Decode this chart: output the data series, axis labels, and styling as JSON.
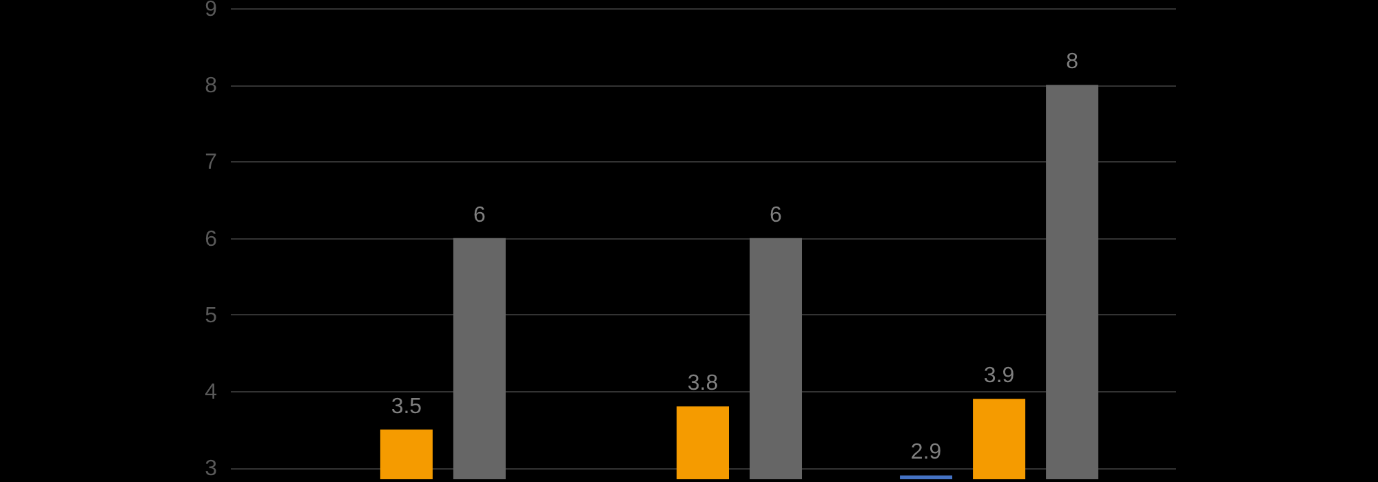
{
  "chart_data": {
    "type": "bar",
    "categories": [
      null,
      null,
      null
    ],
    "series": [
      {
        "color": "#4472c4",
        "values": [
          null,
          null,
          2.9
        ]
      },
      {
        "color": "#f59b00",
        "values": [
          3.5,
          3.8,
          3.9
        ]
      },
      {
        "color": "#666666",
        "values": [
          6,
          6,
          8
        ]
      }
    ],
    "ylim": [
      2.85,
      9
    ],
    "yticks": [
      3,
      4,
      5,
      6,
      7,
      8,
      9
    ],
    "grid": "y",
    "legend": false,
    "tick_labels": "y",
    "data_labels": true
  }
}
